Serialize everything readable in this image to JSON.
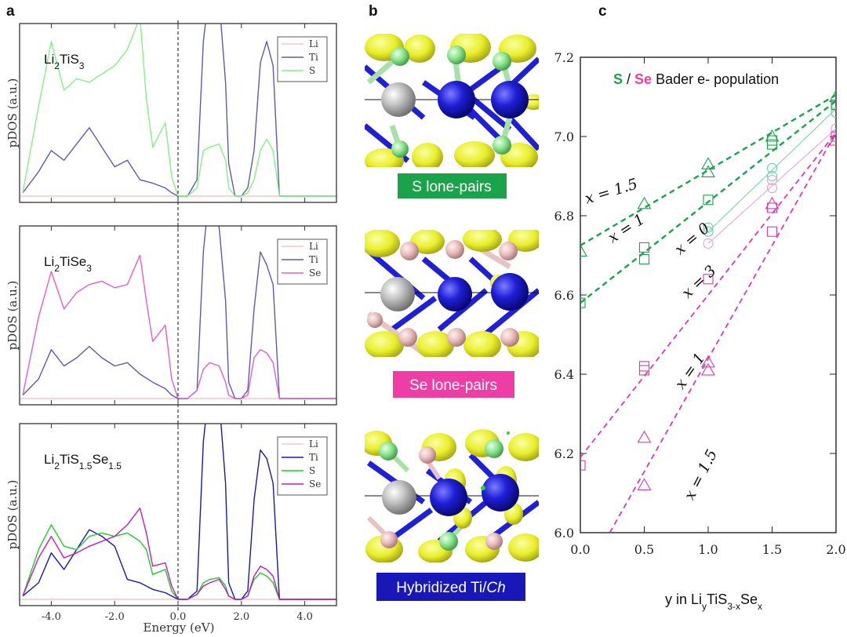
{
  "panel_labels": [
    "a",
    "b",
    "c"
  ],
  "colors": {
    "Li": "#f1c9c9",
    "Ti": "#5b5bb0",
    "Ti_dark": "#1818b0",
    "S": "#86ef86",
    "S_dark": "#1ecb2b",
    "Se": "#e060c8",
    "Se_dark": "#c81cb0",
    "green_fit": "#1aa34a",
    "green_light": "#6bd3a0",
    "magenta_fit": "#d63bb3",
    "magenta_light": "#e79fd4",
    "badge_green": "#1aa34a",
    "badge_pink": "#ee3ea6",
    "badge_blue": "#1818b8"
  },
  "panel_b": {
    "labels": [
      "S lone-pairs",
      "Se lone-pairs"
    ],
    "hybrid_label_main": "Hybridized Ti/",
    "hybrid_label_italic": "Ch"
  },
  "chart_data": [
    {
      "type": "line",
      "panel": "a-top",
      "compound": "Li2TiS3",
      "compound_parts": {
        "base": "Li",
        "sub1": "2",
        "mid": "TiS",
        "sub2": "3"
      },
      "xlabel": "Energy (eV)",
      "ylabel": "pDOS (a.u.)",
      "xlim": [
        -5,
        5
      ],
      "xticks": [
        "-4.0",
        "-2.0",
        "0.0",
        "2.0",
        "4.0"
      ],
      "fermi_level": 0.0,
      "legend": [
        "Li",
        "Ti",
        "S"
      ],
      "series": [
        {
          "name": "Li",
          "x": [
            -5,
            5
          ],
          "y": [
            0,
            0
          ]
        },
        {
          "name": "Ti",
          "x": [
            -4.9,
            -4.4,
            -4.0,
            -3.6,
            -3.2,
            -2.8,
            -2.4,
            -2.0,
            -1.6,
            -1.2,
            -0.8,
            -0.4,
            -0.2,
            0.0,
            0.3,
            0.6,
            0.8,
            0.95,
            1.1,
            1.3,
            1.5,
            1.6,
            1.8,
            2.0,
            2.2,
            2.4,
            2.6,
            2.8,
            3.0,
            3.2,
            3.4,
            3.6,
            4.0,
            4.5,
            5.0
          ],
          "y": [
            0.02,
            0.15,
            0.28,
            0.22,
            0.32,
            0.42,
            0.3,
            0.18,
            0.22,
            0.1,
            0.08,
            0.05,
            0.02,
            0.0,
            0.0,
            0.1,
            0.95,
            1.2,
            1.1,
            1.2,
            0.7,
            0.2,
            0.0,
            0.0,
            0.05,
            0.28,
            0.82,
            0.95,
            0.8,
            0.0,
            0.0,
            0.0,
            0.0,
            0.0,
            0.0
          ]
        },
        {
          "name": "S",
          "x": [
            -4.9,
            -4.4,
            -4.0,
            -3.6,
            -3.2,
            -2.8,
            -2.4,
            -2.0,
            -1.6,
            -1.2,
            -1.0,
            -0.8,
            -0.4,
            -0.2,
            0.0,
            0.3,
            0.6,
            0.8,
            1.0,
            1.3,
            1.5,
            1.6,
            1.8,
            2.0,
            2.2,
            2.4,
            2.6,
            2.8,
            3.0,
            3.2,
            3.4,
            3.6,
            4.0,
            4.5,
            5.0
          ],
          "y": [
            0.02,
            0.55,
            0.95,
            0.65,
            0.72,
            0.7,
            0.75,
            0.8,
            0.9,
            1.1,
            0.6,
            0.3,
            0.45,
            0.12,
            0.0,
            0.0,
            0.05,
            0.28,
            0.3,
            0.32,
            0.22,
            0.05,
            0.0,
            0.0,
            0.02,
            0.1,
            0.28,
            0.35,
            0.28,
            0.0,
            0.0,
            0.0,
            0.0,
            0.0,
            0.0
          ]
        }
      ]
    },
    {
      "type": "line",
      "panel": "a-middle",
      "compound": "Li2TiSe3",
      "compound_parts": {
        "base": "Li",
        "sub1": "2",
        "mid": "TiSe",
        "sub2": "3"
      },
      "xlabel": "Energy (eV)",
      "ylabel": "pDOS (a.u.)",
      "xlim": [
        -5,
        5
      ],
      "xticks": [
        "-4.0",
        "-2.0",
        "0.0",
        "2.0",
        "4.0"
      ],
      "fermi_level": 0.0,
      "legend": [
        "Li",
        "Ti",
        "Se"
      ],
      "series": [
        {
          "name": "Li",
          "x": [
            -5,
            5
          ],
          "y": [
            0,
            0
          ]
        },
        {
          "name": "Ti",
          "x": [
            -4.9,
            -4.4,
            -4.0,
            -3.6,
            -3.2,
            -2.8,
            -2.4,
            -2.0,
            -1.6,
            -1.2,
            -0.8,
            -0.4,
            -0.2,
            0.0,
            0.3,
            0.6,
            0.8,
            0.95,
            1.1,
            1.3,
            1.5,
            1.6,
            1.8,
            2.0,
            2.2,
            2.4,
            2.6,
            2.8,
            3.0,
            3.2,
            3.4,
            3.6,
            4.0,
            4.5,
            5.0
          ],
          "y": [
            0.02,
            0.12,
            0.3,
            0.2,
            0.25,
            0.32,
            0.25,
            0.2,
            0.22,
            0.15,
            0.1,
            0.06,
            0.02,
            0.0,
            0.0,
            0.05,
            0.9,
            1.2,
            1.15,
            1.05,
            0.6,
            0.1,
            0.0,
            0.0,
            0.05,
            0.55,
            0.9,
            0.82,
            0.7,
            0.0,
            0.0,
            0.0,
            0.0,
            0.0,
            0.0
          ]
        },
        {
          "name": "Se",
          "x": [
            -4.9,
            -4.4,
            -4.0,
            -3.6,
            -3.2,
            -2.8,
            -2.4,
            -2.0,
            -1.6,
            -1.2,
            -1.0,
            -0.8,
            -0.4,
            -0.2,
            0.0,
            0.3,
            0.6,
            0.8,
            1.0,
            1.3,
            1.5,
            1.6,
            1.8,
            2.0,
            2.2,
            2.4,
            2.6,
            2.8,
            3.0,
            3.2,
            3.4,
            3.6,
            4.0,
            4.5,
            5.0
          ],
          "y": [
            0.02,
            0.5,
            0.78,
            0.55,
            0.65,
            0.7,
            0.72,
            0.68,
            0.7,
            0.88,
            0.6,
            0.35,
            0.45,
            0.12,
            0.0,
            0.0,
            0.05,
            0.18,
            0.22,
            0.2,
            0.1,
            0.02,
            0.0,
            0.0,
            0.02,
            0.25,
            0.3,
            0.28,
            0.22,
            0.0,
            0.0,
            0.0,
            0.0,
            0.0,
            0.0
          ]
        }
      ]
    },
    {
      "type": "line",
      "panel": "a-bottom",
      "compound": "Li2TiS1.5Se1.5",
      "compound_parts": {
        "base": "Li",
        "sub1": "2",
        "mid": "TiS",
        "sub2": "1.5",
        "mid2": "Se",
        "sub3": "1.5"
      },
      "xlabel": "Energy (eV)",
      "ylabel": "pDOS (a.u.)",
      "xlim": [
        -5,
        5
      ],
      "xticks": [
        "-4.0",
        "-2.0",
        "0.0",
        "2.0",
        "4.0"
      ],
      "fermi_level": 0.0,
      "legend": [
        "Li",
        "Ti",
        "S",
        "Se"
      ],
      "series": [
        {
          "name": "Li",
          "x": [
            -5,
            5
          ],
          "y": [
            0,
            0
          ]
        },
        {
          "name": "Ti",
          "x": [
            -4.9,
            -4.4,
            -4.0,
            -3.6,
            -3.2,
            -2.8,
            -2.4,
            -2.0,
            -1.6,
            -1.2,
            -0.8,
            -0.4,
            -0.2,
            0.0,
            0.3,
            0.6,
            0.8,
            0.95,
            1.1,
            1.3,
            1.5,
            1.6,
            1.8,
            2.0,
            2.2,
            2.4,
            2.6,
            2.8,
            3.0,
            3.2,
            3.4,
            3.6,
            4.0,
            4.5,
            5.0
          ],
          "y": [
            0.02,
            0.1,
            0.28,
            0.18,
            0.3,
            0.42,
            0.38,
            0.32,
            0.12,
            0.1,
            0.06,
            0.04,
            0.02,
            0.0,
            0.0,
            0.05,
            0.95,
            1.22,
            1.15,
            1.2,
            0.7,
            0.1,
            0.0,
            0.0,
            0.05,
            0.6,
            0.9,
            0.85,
            0.7,
            0.0,
            0.0,
            0.0,
            0.0,
            0.0,
            0.0
          ]
        },
        {
          "name": "S",
          "x": [
            -4.9,
            -4.4,
            -4.0,
            -3.6,
            -3.2,
            -2.8,
            -2.4,
            -2.0,
            -1.6,
            -1.2,
            -1.0,
            -0.8,
            -0.4,
            -0.2,
            0.0,
            0.3,
            0.6,
            0.8,
            1.0,
            1.3,
            1.5,
            1.6,
            1.8,
            2.0,
            2.2,
            2.4,
            2.6,
            2.8,
            3.0,
            3.2,
            3.4,
            3.6,
            4.0,
            4.5,
            5.0
          ],
          "y": [
            0.02,
            0.3,
            0.45,
            0.32,
            0.3,
            0.38,
            0.4,
            0.38,
            0.4,
            0.35,
            0.3,
            0.15,
            0.18,
            0.05,
            0.0,
            0.0,
            0.03,
            0.1,
            0.12,
            0.13,
            0.08,
            0.02,
            0.0,
            0.0,
            0.02,
            0.12,
            0.16,
            0.14,
            0.1,
            0.0,
            0.0,
            0.0,
            0.0,
            0.0,
            0.0
          ]
        },
        {
          "name": "Se",
          "x": [
            -4.9,
            -4.4,
            -4.0,
            -3.6,
            -3.2,
            -2.8,
            -2.4,
            -2.0,
            -1.6,
            -1.2,
            -1.0,
            -0.8,
            -0.4,
            -0.2,
            0.0,
            0.3,
            0.6,
            0.8,
            1.0,
            1.3,
            1.5,
            1.6,
            1.8,
            2.0,
            2.2,
            2.4,
            2.6,
            2.8,
            3.0,
            3.2,
            3.4,
            3.6,
            4.0,
            4.5,
            5.0
          ],
          "y": [
            0.02,
            0.25,
            0.38,
            0.25,
            0.28,
            0.32,
            0.35,
            0.38,
            0.45,
            0.55,
            0.4,
            0.2,
            0.22,
            0.08,
            0.0,
            0.0,
            0.03,
            0.08,
            0.1,
            0.12,
            0.06,
            0.02,
            0.0,
            0.0,
            0.02,
            0.14,
            0.2,
            0.18,
            0.14,
            0.0,
            0.0,
            0.0,
            0.0,
            0.0,
            0.0
          ]
        }
      ]
    },
    {
      "type": "scatter",
      "panel": "c",
      "title_parts": {
        "s": "S",
        "slash": " / ",
        "se": "Se",
        "rest": " Bader e- population"
      },
      "xlabel_parts": {
        "pre": "y in Li",
        "y": "y",
        "mid": "TiS",
        "sub": "3-x",
        "se": "Se",
        "x": "x"
      },
      "xlim": [
        0.0,
        2.0
      ],
      "ylim": [
        6.0,
        7.2
      ],
      "xticks": [
        "0.0",
        "0.5",
        "1.0",
        "1.5",
        "2.0"
      ],
      "yticks": [
        "6.0",
        "6.2",
        "6.4",
        "6.6",
        "6.8",
        "7.0",
        "7.2"
      ],
      "series": [
        {
          "element": "S",
          "x_label": "x = 0",
          "marker": "circle",
          "color": "#6bd3a0",
          "points": [
            [
              1.0,
              6.76
            ],
            [
              1.0,
              6.77
            ],
            [
              1.5,
              6.9
            ],
            [
              1.5,
              6.92
            ],
            [
              2.0,
              7.06
            ],
            [
              2.0,
              7.08
            ]
          ]
        },
        {
          "element": "S",
          "x_label": "x = 1",
          "marker": "square",
          "color": "#1aa34a",
          "points": [
            [
              0.0,
              6.58
            ],
            [
              0.5,
              6.69
            ],
            [
              0.5,
              6.72
            ],
            [
              1.0,
              6.84
            ],
            [
              1.5,
              6.98
            ],
            [
              1.5,
              6.99
            ],
            [
              2.0,
              7.08
            ]
          ]
        },
        {
          "element": "S",
          "x_label": "x = 1.5",
          "marker": "triangle",
          "color": "#1aa34a",
          "points": [
            [
              0.0,
              6.71
            ],
            [
              0.5,
              6.83
            ],
            [
              1.0,
              6.91
            ],
            [
              1.0,
              6.93
            ],
            [
              1.5,
              7.0
            ],
            [
              2.0,
              7.1
            ]
          ]
        },
        {
          "element": "Se",
          "x_label": "x = 3",
          "marker": "circle",
          "color": "#e79fd4",
          "points": [
            [
              1.0,
              6.73
            ],
            [
              1.5,
              6.87
            ],
            [
              1.5,
              6.89
            ],
            [
              2.0,
              7.02
            ]
          ]
        },
        {
          "element": "Se",
          "x_label": "x = 1",
          "marker": "square",
          "color": "#d63bb3",
          "points": [
            [
              0.0,
              6.17
            ],
            [
              0.5,
              6.41
            ],
            [
              0.5,
              6.42
            ],
            [
              1.0,
              6.64
            ],
            [
              1.5,
              6.76
            ],
            [
              1.5,
              6.82
            ],
            [
              2.0,
              7.0
            ]
          ]
        },
        {
          "element": "Se",
          "x_label": "x = 1.5",
          "marker": "triangle",
          "color": "#d63bb3",
          "points": [
            [
              0.5,
              6.12
            ],
            [
              0.5,
              6.24
            ],
            [
              1.0,
              6.41
            ],
            [
              1.0,
              6.43
            ],
            [
              1.5,
              6.83
            ],
            [
              2.0,
              6.99
            ]
          ]
        }
      ],
      "fits": [
        {
          "label": "x = 1.5",
          "element": "S",
          "style": "dashed",
          "width": 2.4,
          "color": "#1aa34a",
          "from": [
            0.0,
            6.725
          ],
          "to": [
            2.0,
            7.105
          ]
        },
        {
          "label": "x = 1",
          "element": "S",
          "style": "dashed",
          "width": 2.4,
          "color": "#1aa34a",
          "from": [
            0.0,
            6.58
          ],
          "to": [
            2.0,
            7.09
          ]
        },
        {
          "label": "x = 0",
          "element": "S",
          "style": "solid",
          "width": 1.0,
          "color": "#6bd3a0",
          "from": [
            1.0,
            6.76
          ],
          "to": [
            2.0,
            7.07
          ]
        },
        {
          "label": "x = 3",
          "element": "Se",
          "style": "solid",
          "width": 1.0,
          "color": "#e79fd4",
          "from": [
            1.0,
            6.73
          ],
          "to": [
            2.0,
            7.02
          ]
        },
        {
          "label": "x = 1",
          "element": "Se",
          "style": "dashed",
          "width": 1.8,
          "color": "#d63bb3",
          "from": [
            0.0,
            6.19
          ],
          "to": [
            2.0,
            7.01
          ]
        },
        {
          "label": "x = 1.5",
          "element": "Se",
          "style": "dashed",
          "width": 1.8,
          "color": "#d63bb3",
          "from": [
            0.23,
            6.0
          ],
          "to": [
            2.0,
            7.01
          ]
        }
      ],
      "fit_labels": [
        {
          "text": "x = 1.5",
          "at": [
            0.05,
            6.83
          ],
          "angle": -17
        },
        {
          "text": "x = 1",
          "at": [
            0.25,
            6.73
          ],
          "angle": -33
        },
        {
          "text": "x = 0",
          "at": [
            0.78,
            6.7
          ],
          "angle": -40
        },
        {
          "text": "x = 3",
          "at": [
            0.84,
            6.59
          ],
          "angle": -43
        },
        {
          "text": "x = 1",
          "at": [
            0.8,
            6.36
          ],
          "angle": -55
        },
        {
          "text": "x = 1.5",
          "at": [
            0.88,
            6.08
          ],
          "angle": -63
        }
      ]
    }
  ]
}
